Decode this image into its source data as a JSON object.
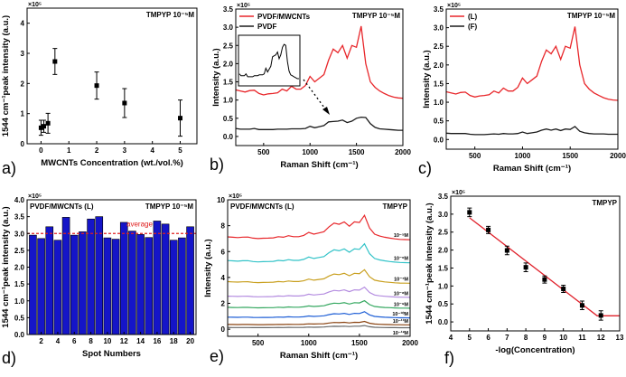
{
  "colors": {
    "red": "#e8262a",
    "black": "#1a1a1a",
    "bar": "#1515c8",
    "average": "#e02020",
    "fit": "#e0202a"
  },
  "chart_data": [
    {
      "panel": "a)",
      "type": "scatter",
      "annotation": "TMPYP 10⁻⁵M",
      "multiplier": "×10⁵",
      "xlabel": "MWCNTs Concentration (wt./vol.%)",
      "ylabel": "1544 cm⁻¹peak intensity (a.u.)",
      "xlim": [
        -0.5,
        5.6
      ],
      "ylim": [
        0,
        4.5
      ],
      "xticks": [
        0,
        1,
        2,
        3,
        4,
        5
      ],
      "yticks": [
        0,
        1,
        2,
        3,
        4
      ],
      "x": [
        0,
        0.1,
        0.25,
        0.5,
        2,
        3,
        5
      ],
      "y": [
        0.53,
        0.58,
        0.68,
        2.73,
        1.93,
        1.35,
        0.85
      ],
      "err": [
        0.25,
        0.2,
        0.33,
        0.43,
        0.45,
        0.48,
        0.6
      ]
    },
    {
      "panel": "b)",
      "type": "line",
      "annotation": "TMPYP 10⁻⁵M",
      "multiplier": "×10⁵",
      "xlabel": "Raman Shift (cm⁻¹)",
      "ylabel": "Intensity (a.u.)",
      "xlim": [
        200,
        2000
      ],
      "ylim": [
        -0.25,
        3.5
      ],
      "xticks": [
        500,
        1000,
        1500,
        2000
      ],
      "yticks": [
        0.0,
        0.5,
        1.0,
        1.5,
        2.0,
        2.5,
        3.0,
        3.5
      ],
      "legend": "top-left",
      "inset": "magnified PVDF spectrum",
      "x": [
        200,
        250,
        300,
        350,
        400,
        450,
        500,
        550,
        600,
        650,
        700,
        750,
        800,
        850,
        900,
        950,
        1000,
        1050,
        1100,
        1150,
        1200,
        1250,
        1300,
        1350,
        1400,
        1450,
        1500,
        1550,
        1600,
        1650,
        1700,
        1750,
        1800,
        1850,
        1900,
        1950,
        2000
      ],
      "series": [
        {
          "name": "PVDF/MWCNTs",
          "color": "#e8262a",
          "values": [
            1.28,
            1.25,
            1.22,
            1.26,
            1.27,
            1.18,
            1.14,
            1.17,
            1.18,
            1.2,
            1.3,
            1.25,
            1.38,
            1.3,
            1.3,
            1.4,
            1.65,
            1.5,
            1.6,
            1.7,
            2.1,
            2.4,
            2.3,
            2.5,
            2.15,
            2.5,
            2.45,
            3.03,
            2.0,
            1.5,
            1.35,
            1.25,
            1.18,
            1.12,
            1.08,
            1.06,
            1.05
          ]
        },
        {
          "name": "PVDF",
          "color": "#1a1a1a",
          "values": [
            0.22,
            0.2,
            0.2,
            0.2,
            0.22,
            0.19,
            0.19,
            0.19,
            0.19,
            0.2,
            0.2,
            0.2,
            0.21,
            0.21,
            0.21,
            0.22,
            0.28,
            0.24,
            0.27,
            0.3,
            0.4,
            0.41,
            0.42,
            0.45,
            0.38,
            0.42,
            0.5,
            0.53,
            0.52,
            0.35,
            0.25,
            0.21,
            0.2,
            0.19,
            0.18,
            0.17,
            0.17
          ]
        }
      ]
    },
    {
      "panel": "c)",
      "type": "line",
      "annotation": "TMPYP 10⁻⁵M",
      "multiplier": "×10⁵",
      "xlabel": "Raman Shift (cm⁻¹)",
      "ylabel": "Intensity (a.u.)",
      "xlim": [
        200,
        2000
      ],
      "ylim": [
        -0.26,
        3.5
      ],
      "xticks": [
        500,
        1000,
        1500,
        2000
      ],
      "yticks": [
        0.0,
        0.5,
        1.0,
        1.5,
        2.0,
        2.5,
        3.0,
        3.5
      ],
      "legend": "top-left",
      "x": [
        200,
        250,
        300,
        350,
        400,
        450,
        500,
        550,
        600,
        650,
        700,
        750,
        800,
        850,
        900,
        950,
        1000,
        1050,
        1100,
        1150,
        1200,
        1250,
        1300,
        1350,
        1400,
        1450,
        1500,
        1550,
        1600,
        1650,
        1700,
        1750,
        1800,
        1850,
        1900,
        1950,
        2000
      ],
      "series": [
        {
          "name": "(L)",
          "color": "#e8262a",
          "values": [
            1.28,
            1.25,
            1.22,
            1.26,
            1.27,
            1.18,
            1.14,
            1.17,
            1.18,
            1.2,
            1.3,
            1.25,
            1.38,
            1.3,
            1.3,
            1.4,
            1.65,
            1.5,
            1.6,
            1.7,
            2.1,
            2.4,
            2.3,
            2.5,
            2.15,
            2.5,
            2.45,
            3.03,
            2.0,
            1.5,
            1.35,
            1.25,
            1.18,
            1.12,
            1.08,
            1.06,
            1.05
          ]
        },
        {
          "name": "(F)",
          "color": "#1a1a1a",
          "values": [
            0.17,
            0.16,
            0.16,
            0.16,
            0.16,
            0.14,
            0.13,
            0.13,
            0.13,
            0.14,
            0.15,
            0.14,
            0.16,
            0.15,
            0.15,
            0.16,
            0.2,
            0.16,
            0.18,
            0.2,
            0.25,
            0.28,
            0.25,
            0.28,
            0.24,
            0.28,
            0.27,
            0.35,
            0.22,
            0.18,
            0.16,
            0.15,
            0.15,
            0.15,
            0.14,
            0.14,
            0.14
          ]
        }
      ]
    },
    {
      "panel": "d)",
      "type": "bar",
      "annotation": "TMPYP 10⁻⁵M",
      "label": "PVDF/MWCNTs (L)",
      "multiplier": "×10⁵",
      "xlabel": "Spot Numbers",
      "ylabel": "1544 cm⁻¹peak intensity (a.u.)",
      "ylim": [
        0,
        4.0
      ],
      "yticks": [
        0.0,
        0.5,
        1.0,
        1.5,
        2.0,
        2.5,
        3.0,
        3.5,
        4.0
      ],
      "xticks": [
        2,
        4,
        6,
        8,
        10,
        12,
        14,
        16,
        18,
        20
      ],
      "categories": [
        1,
        2,
        3,
        4,
        5,
        6,
        7,
        8,
        9,
        10,
        11,
        12,
        13,
        14,
        15,
        16,
        17,
        18,
        19,
        20
      ],
      "values": [
        2.95,
        2.85,
        3.2,
        2.8,
        3.48,
        2.95,
        3.05,
        3.43,
        3.5,
        2.87,
        2.83,
        3.33,
        3.07,
        2.97,
        2.88,
        3.37,
        3.28,
        2.8,
        2.87,
        3.2
      ],
      "average": {
        "label": "average",
        "value": 3.0
      }
    },
    {
      "panel": "e)",
      "type": "line",
      "annotation": "TMPYP",
      "label": "PVDF/MWCNTs (L)",
      "multiplier": "×10⁵",
      "xlabel": "Raman Shift (cm⁻¹)",
      "ylabel": "Intensity (a.u.)",
      "xlim": [
        200,
        2000
      ],
      "ylim": [
        -0.55,
        10
      ],
      "xticks": [
        500,
        1000,
        1500,
        2000
      ],
      "yticks": [
        0,
        2,
        4,
        6,
        8,
        10
      ],
      "series": [
        {
          "name": "10⁻⁵M",
          "color": "#e8262a",
          "baseline": 7.0,
          "peak": 8.8
        },
        {
          "name": "10⁻⁶M",
          "color": "#33c3c8",
          "baseline": 5.2,
          "peak": 6.6
        },
        {
          "name": "10⁻⁷M",
          "color": "#c9a020",
          "baseline": 3.6,
          "peak": 4.6
        },
        {
          "name": "10⁻⁸M",
          "color": "#b48ce0",
          "baseline": 2.5,
          "peak": 3.25
        },
        {
          "name": "10⁻⁹M",
          "color": "#35a860",
          "baseline": 1.65,
          "peak": 2.2
        },
        {
          "name": "10⁻¹⁰M",
          "color": "#1f5fd6",
          "baseline": 0.9,
          "peak": 1.35
        },
        {
          "name": "10⁻¹¹M",
          "color": "#8b4513",
          "baseline": 0.35,
          "peak": 0.6
        },
        {
          "name": "10⁻¹²M",
          "color": "#666666",
          "baseline": 0.12,
          "peak": 0.28
        }
      ]
    },
    {
      "panel": "f)",
      "type": "scatter",
      "annotation": "TMPYP",
      "multiplier": "×10⁵",
      "xlabel": "-log(Concentration)",
      "ylabel": "1544 cm⁻¹peak intensity (a.u.)",
      "xlim": [
        4,
        13
      ],
      "ylim": [
        -0.25,
        3.5
      ],
      "xticks": [
        4,
        5,
        6,
        7,
        8,
        9,
        10,
        11,
        12,
        13
      ],
      "yticks": [
        0.0,
        0.5,
        1.0,
        1.5,
        2.0,
        2.5,
        3.0,
        3.5
      ],
      "x": [
        5,
        6,
        7,
        8,
        9,
        10,
        11,
        12
      ],
      "y": [
        3.05,
        2.56,
        1.99,
        1.52,
        1.18,
        0.92,
        0.46,
        0.18
      ],
      "err": [
        0.12,
        0.1,
        0.12,
        0.12,
        0.1,
        0.1,
        0.12,
        0.13
      ],
      "fit": {
        "x": [
          5,
          11.8,
          13
        ],
        "y": [
          2.9,
          0.17,
          0.17
        ]
      }
    }
  ]
}
